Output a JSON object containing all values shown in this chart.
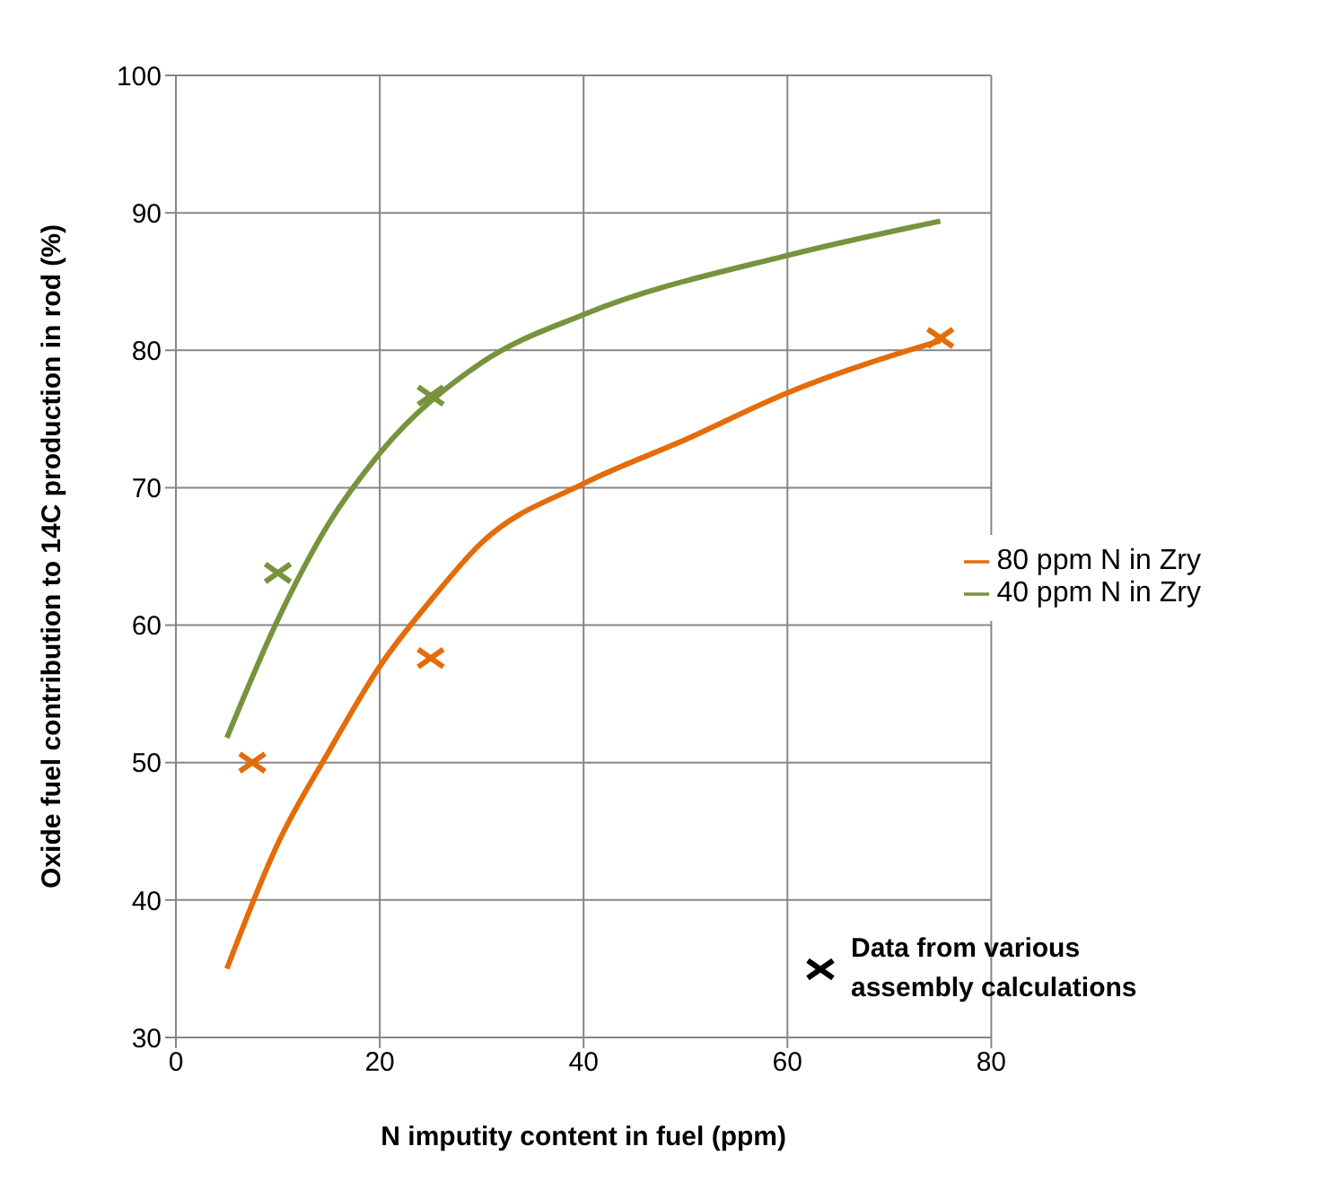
{
  "chart_data": {
    "type": "line",
    "xlabel": "N imputity content in fuel (ppm)",
    "ylabel": "Oxide fuel contribution to 14C production in rod (%)",
    "xlim": [
      0,
      80
    ],
    "xticks": [
      0,
      20,
      40,
      60,
      80
    ],
    "ylim": [
      30,
      100
    ],
    "yticks": [
      30,
      40,
      50,
      60,
      70,
      80,
      90,
      100
    ],
    "grid": true,
    "legend": "right",
    "annotations": [
      "Data from various assembly calculations"
    ],
    "series": [
      {
        "name": "80 ppm N in Zry",
        "color": "#e46c0a",
        "marker": "none",
        "x": [
          5,
          10,
          15,
          20,
          25,
          30,
          40,
          50,
          60,
          75
        ],
        "values": [
          35.0,
          44.1,
          50.8,
          57.0,
          61.8,
          66.0,
          70.3,
          73.5,
          76.9,
          80.7
        ]
      },
      {
        "name": "40 ppm N in Zry",
        "color": "#77933c",
        "marker": "none",
        "x": [
          5,
          10,
          15,
          20,
          30,
          40,
          60,
          75
        ],
        "values": [
          51.8,
          60.4,
          67.4,
          72.5,
          79.1,
          82.6,
          86.9,
          89.4
        ]
      },
      {
        "type": "scatter",
        "color": "#e46c0a",
        "marker": "cross",
        "x": [
          7.5,
          25,
          75
        ],
        "values": [
          50.0,
          57.6,
          80.9
        ]
      },
      {
        "type": "scatter",
        "color": "#77933c",
        "marker": "cross",
        "x": [
          10,
          25
        ],
        "values": [
          63.8,
          76.7
        ]
      }
    ]
  }
}
